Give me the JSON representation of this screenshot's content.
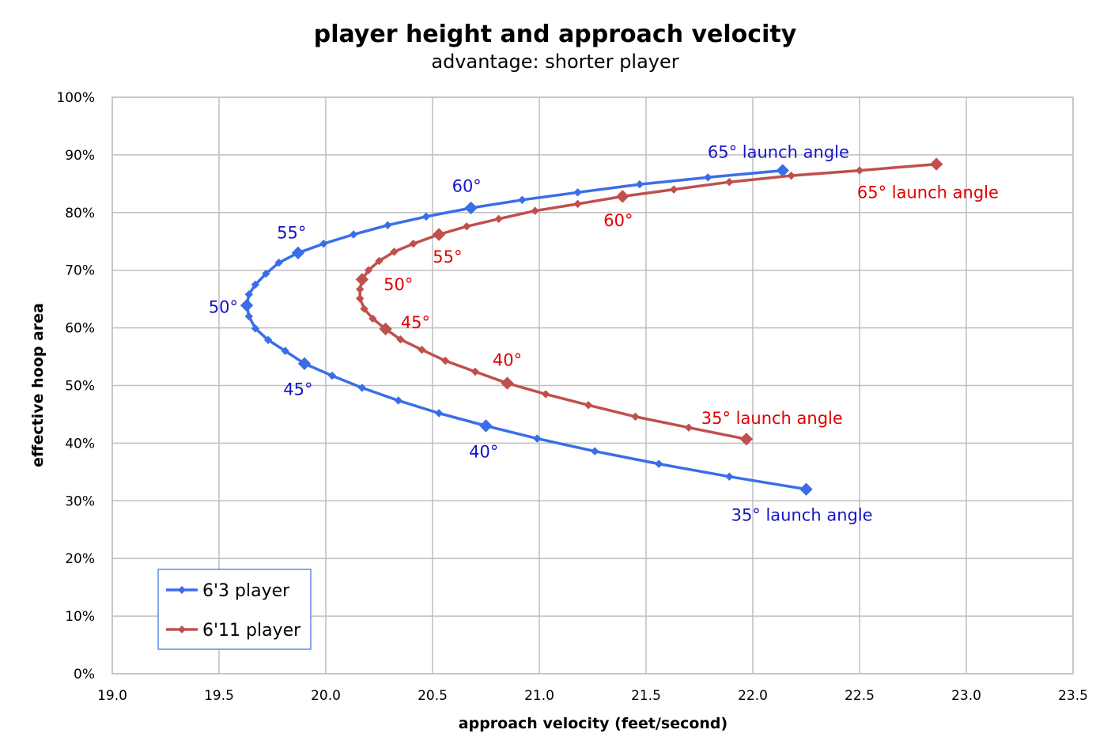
{
  "chart_data": {
    "type": "line",
    "title": "player height and approach velocity",
    "subtitle": "advantage: shorter player",
    "xlabel": "approach velocity (feet/second)",
    "ylabel": "effective hoop area",
    "xlim": [
      19.0,
      23.5
    ],
    "ylim": [
      0,
      100
    ],
    "x_ticks": [
      "19.0",
      "19.5",
      "20.0",
      "20.5",
      "21.0",
      "21.5",
      "22.0",
      "22.5",
      "23.0",
      "23.5"
    ],
    "y_ticks": [
      "0%",
      "10%",
      "20%",
      "30%",
      "40%",
      "50%",
      "60%",
      "70%",
      "80%",
      "90%",
      "100%"
    ],
    "grid": true,
    "legend_position": "bottom-left",
    "series": [
      {
        "name": "6'3 player",
        "color": "#3a6ee8",
        "points": [
          [
            22.25,
            32.0
          ],
          [
            21.89,
            34.2
          ],
          [
            21.56,
            36.4
          ],
          [
            21.26,
            38.6
          ],
          [
            20.99,
            40.8
          ],
          [
            20.75,
            43.0
          ],
          [
            20.53,
            45.2
          ],
          [
            20.34,
            47.4
          ],
          [
            20.17,
            49.6
          ],
          [
            20.03,
            51.7
          ],
          [
            19.9,
            53.8
          ],
          [
            19.81,
            56.0
          ],
          [
            19.73,
            57.9
          ],
          [
            19.67,
            59.9
          ],
          [
            19.64,
            62.0
          ],
          [
            19.63,
            63.9
          ],
          [
            19.64,
            65.8
          ],
          [
            19.67,
            67.5
          ],
          [
            19.72,
            69.4
          ],
          [
            19.78,
            71.3
          ],
          [
            19.87,
            73.0
          ],
          [
            19.99,
            74.6
          ],
          [
            20.13,
            76.2
          ],
          [
            20.29,
            77.8
          ],
          [
            20.47,
            79.3
          ],
          [
            20.68,
            80.8
          ],
          [
            20.92,
            82.2
          ],
          [
            21.18,
            83.5
          ],
          [
            21.47,
            84.9
          ],
          [
            21.79,
            86.1
          ],
          [
            22.14,
            87.3
          ]
        ],
        "major_points": [
          [
            22.25,
            32.0
          ],
          [
            20.75,
            43.0
          ],
          [
            19.9,
            53.8
          ],
          [
            19.63,
            63.9
          ],
          [
            19.87,
            73.0
          ],
          [
            20.68,
            80.8
          ],
          [
            22.14,
            87.3
          ]
        ]
      },
      {
        "name": "6'11 player",
        "color": "#c0504d",
        "points": [
          [
            21.97,
            40.7
          ],
          [
            21.7,
            42.7
          ],
          [
            21.45,
            44.6
          ],
          [
            21.23,
            46.6
          ],
          [
            21.03,
            48.5
          ],
          [
            20.85,
            50.4
          ],
          [
            20.7,
            52.4
          ],
          [
            20.56,
            54.3
          ],
          [
            20.45,
            56.2
          ],
          [
            20.35,
            58.0
          ],
          [
            20.28,
            59.8
          ],
          [
            20.22,
            61.6
          ],
          [
            20.18,
            63.3
          ],
          [
            20.16,
            65.1
          ],
          [
            20.16,
            66.7
          ],
          [
            20.17,
            68.4
          ],
          [
            20.2,
            70.0
          ],
          [
            20.25,
            71.6
          ],
          [
            20.32,
            73.2
          ],
          [
            20.41,
            74.6
          ],
          [
            20.53,
            76.2
          ],
          [
            20.66,
            77.6
          ],
          [
            20.81,
            78.9
          ],
          [
            20.98,
            80.3
          ],
          [
            21.18,
            81.5
          ],
          [
            21.39,
            82.8
          ],
          [
            21.63,
            84.0
          ],
          [
            21.89,
            85.3
          ],
          [
            22.18,
            86.4
          ],
          [
            22.5,
            87.3
          ],
          [
            22.86,
            88.4
          ]
        ],
        "major_points": [
          [
            21.97,
            40.7
          ],
          [
            20.85,
            50.4
          ],
          [
            20.28,
            59.8
          ],
          [
            20.17,
            68.4
          ],
          [
            20.53,
            76.2
          ],
          [
            21.39,
            82.8
          ],
          [
            22.86,
            88.4
          ]
        ]
      }
    ],
    "annotations": [
      {
        "text": "35° launch angle",
        "x": 22.23,
        "y": 27.5,
        "color": "#1414c8"
      },
      {
        "text": "40°",
        "x": 20.74,
        "y": 38.5,
        "color": "#1414c8"
      },
      {
        "text": "45°",
        "x": 19.87,
        "y": 49.3,
        "color": "#1414c8"
      },
      {
        "text": "50°",
        "x": 19.52,
        "y": 63.6,
        "color": "#1414c8"
      },
      {
        "text": "55°",
        "x": 19.84,
        "y": 76.5,
        "color": "#1414c8"
      },
      {
        "text": "60°",
        "x": 20.66,
        "y": 84.6,
        "color": "#1414c8"
      },
      {
        "text": "65° launch angle",
        "x": 22.12,
        "y": 90.5,
        "color": "#1414c8"
      },
      {
        "text": "35° launch angle",
        "x": 22.09,
        "y": 44.3,
        "color": "#e00000"
      },
      {
        "text": "40°",
        "x": 20.85,
        "y": 54.4,
        "color": "#e00000"
      },
      {
        "text": "45°",
        "x": 20.42,
        "y": 60.9,
        "color": "#e00000"
      },
      {
        "text": "50°",
        "x": 20.34,
        "y": 67.5,
        "color": "#e00000"
      },
      {
        "text": "55°",
        "x": 20.57,
        "y": 72.3,
        "color": "#e00000"
      },
      {
        "text": "60°",
        "x": 21.37,
        "y": 78.6,
        "color": "#e00000"
      },
      {
        "text": "65°  launch angle",
        "x": 22.82,
        "y": 83.5,
        "color": "#e00000"
      }
    ]
  }
}
